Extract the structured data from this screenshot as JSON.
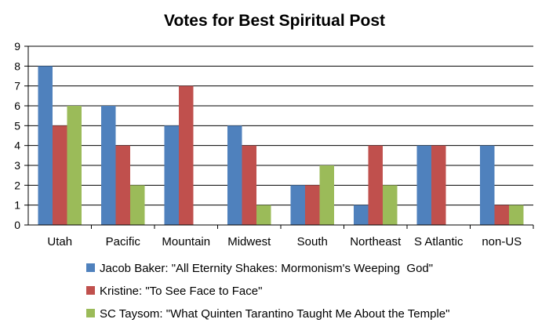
{
  "chart_data": {
    "type": "bar",
    "title": "Votes for Best Spiritual Post",
    "xlabel": "",
    "ylabel": "",
    "ylim": [
      0,
      9
    ],
    "yticks": [
      0,
      1,
      2,
      3,
      4,
      5,
      6,
      7,
      8,
      9
    ],
    "grid": true,
    "legend_position": "bottom",
    "categories": [
      "Utah",
      "Pacific",
      "Mountain",
      "Midwest",
      "South",
      "Northeast",
      "S Atlantic",
      "non-US"
    ],
    "series": [
      {
        "name": "Jacob Baker: \"All Eternity Shakes: Mormonism's Weeping  God\"",
        "color": "#4f81bd",
        "values": [
          8,
          6,
          5,
          5,
          2,
          1,
          4,
          4
        ]
      },
      {
        "name": "Kristine: \"To See Face to Face\"",
        "color": "#c0504d",
        "values": [
          5,
          4,
          7,
          4,
          2,
          4,
          4,
          1
        ]
      },
      {
        "name": "SC Taysom: \"What Quinten Tarantino Taught Me About the Temple\"",
        "color": "#9bbb59",
        "values": [
          6,
          2,
          0,
          1,
          3,
          2,
          0,
          1
        ]
      }
    ]
  }
}
